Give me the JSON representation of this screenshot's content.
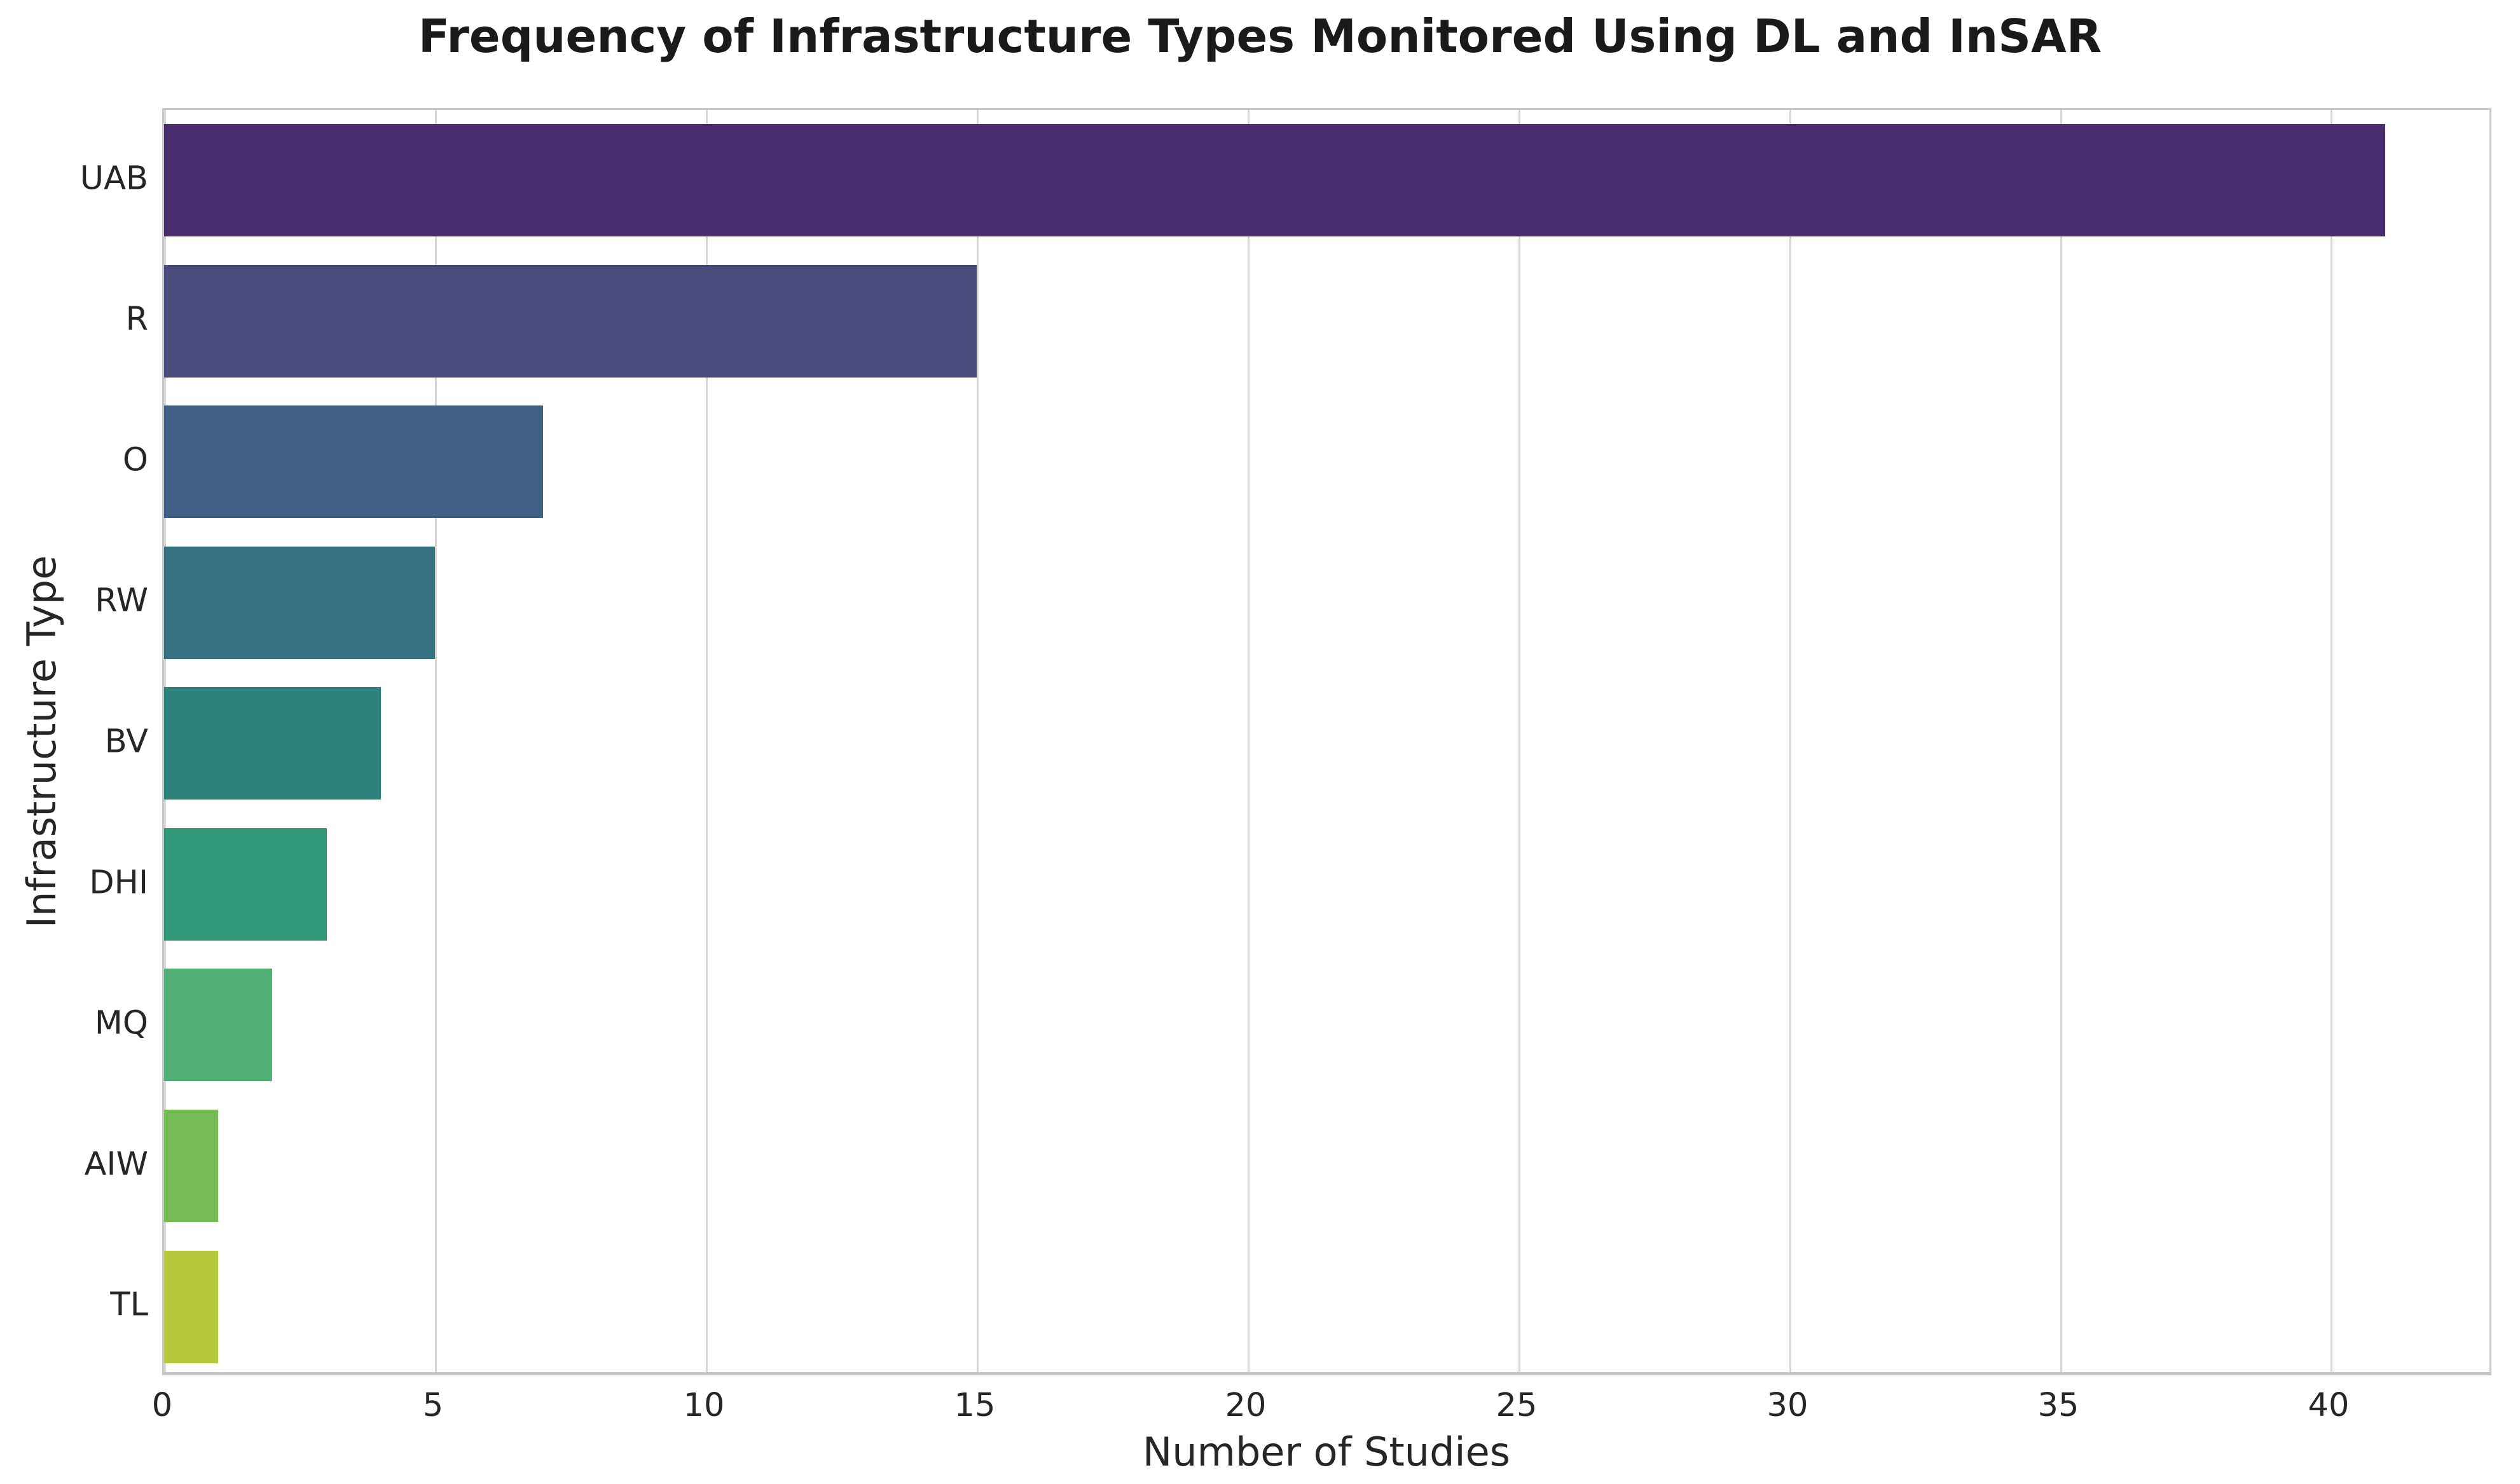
{
  "chart_data": {
    "type": "bar",
    "orientation": "horizontal",
    "title": "Frequency of Infrastructure Types Monitored Using DL and InSAR",
    "xlabel": "Number of Studies",
    "ylabel": "Infrastructure Type",
    "categories": [
      "UAB",
      "R",
      "O",
      "RW",
      "BV",
      "DHI",
      "MQ",
      "AIW",
      "TL"
    ],
    "values": [
      41,
      15,
      7,
      5,
      4,
      3,
      2,
      1,
      1
    ],
    "bar_colors": [
      "#4a2d6e",
      "#4a4b7d",
      "#405f85",
      "#357181",
      "#2d837c",
      "#31987a",
      "#52af76",
      "#76bc54",
      "#b5c93b"
    ],
    "xticks": [
      0,
      5,
      10,
      15,
      20,
      25,
      30,
      35,
      40
    ],
    "xlim": [
      0,
      43
    ],
    "bar_fraction": 0.8,
    "grid": "vertical",
    "grid_color": "#d6d6d6",
    "spine_color": "#c9c9c9",
    "text_color": "#262626",
    "legend": "none"
  }
}
